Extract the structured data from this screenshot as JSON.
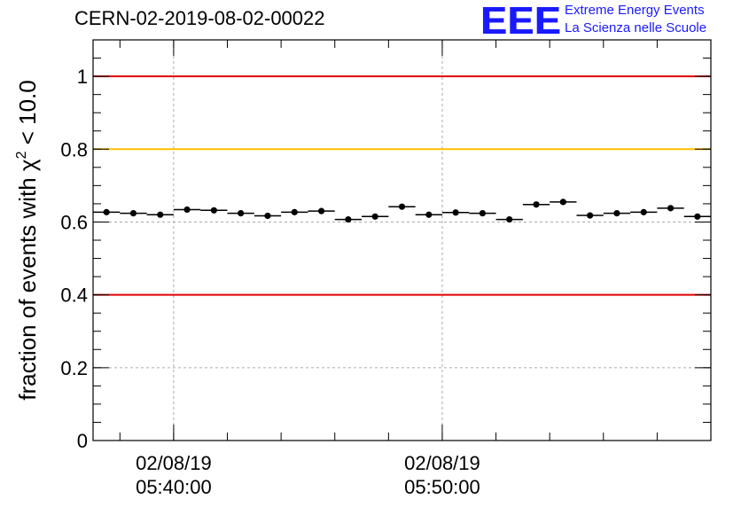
{
  "title": "CERN-02-2019-08-02-00022",
  "logo": {
    "mark": "EEE",
    "line1": "Extreme Energy Events",
    "line2": "La Scienza nelle Scuole",
    "color": "#1a1aff"
  },
  "chart_data": {
    "type": "scatter",
    "title": "CERN-02-2019-08-02-00022",
    "ylabel_prefix": "fraction of events with ",
    "ylabel_symbol": "χ",
    "ylabel_exp": "2",
    "ylabel_suffix": " < 10.0",
    "xlabel": "",
    "ylim": [
      0,
      1.1
    ],
    "yticks": [
      {
        "value": 0,
        "label": "0"
      },
      {
        "value": 0.2,
        "label": "0.2"
      },
      {
        "value": 0.4,
        "label": "0.4"
      },
      {
        "value": 0.6,
        "label": "0.6"
      },
      {
        "value": 0.8,
        "label": "0.8"
      },
      {
        "value": 1,
        "label": "1"
      }
    ],
    "xlim": [
      "2019-08-02T05:37:00",
      "2019-08-02T05:60:00"
    ],
    "xticks": [
      {
        "value": "2019-08-02T05:40:00",
        "date": "02/08/19",
        "time": "05:40:00"
      },
      {
        "value": "2019-08-02T05:50:00",
        "date": "02/08/19",
        "time": "05:50:00"
      }
    ],
    "grid": true,
    "reference_lines": [
      {
        "value": 1.0,
        "color": "#e00000"
      },
      {
        "value": 0.8,
        "color": "#ffc000"
      },
      {
        "value": 0.4,
        "color": "#e00000"
      }
    ],
    "bin_width_min": 1,
    "series": [
      {
        "values": [
          {
            "x": "05:37:30",
            "y": 0.627,
            "err": 0.006
          },
          {
            "x": "05:38:30",
            "y": 0.624,
            "err": 0.006
          },
          {
            "x": "05:39:30",
            "y": 0.62,
            "err": 0.006
          },
          {
            "x": "05:40:30",
            "y": 0.634,
            "err": 0.006
          },
          {
            "x": "05:41:30",
            "y": 0.632,
            "err": 0.006
          },
          {
            "x": "05:42:30",
            "y": 0.624,
            "err": 0.006
          },
          {
            "x": "05:43:30",
            "y": 0.617,
            "err": 0.006
          },
          {
            "x": "05:44:30",
            "y": 0.627,
            "err": 0.006
          },
          {
            "x": "05:45:30",
            "y": 0.63,
            "err": 0.006
          },
          {
            "x": "05:46:30",
            "y": 0.607,
            "err": 0.006
          },
          {
            "x": "05:47:30",
            "y": 0.615,
            "err": 0.006
          },
          {
            "x": "05:48:30",
            "y": 0.642,
            "err": 0.006
          },
          {
            "x": "05:49:30",
            "y": 0.62,
            "err": 0.006
          },
          {
            "x": "05:50:30",
            "y": 0.626,
            "err": 0.006
          },
          {
            "x": "05:51:30",
            "y": 0.624,
            "err": 0.006
          },
          {
            "x": "05:52:30",
            "y": 0.607,
            "err": 0.006
          },
          {
            "x": "05:53:30",
            "y": 0.648,
            "err": 0.006
          },
          {
            "x": "05:54:30",
            "y": 0.655,
            "err": 0.006
          },
          {
            "x": "05:55:30",
            "y": 0.618,
            "err": 0.006
          },
          {
            "x": "05:56:30",
            "y": 0.624,
            "err": 0.006
          },
          {
            "x": "05:57:30",
            "y": 0.627,
            "err": 0.006
          },
          {
            "x": "05:58:30",
            "y": 0.638,
            "err": 0.006
          },
          {
            "x": "05:59:30",
            "y": 0.615,
            "err": 0.006
          }
        ]
      }
    ]
  }
}
